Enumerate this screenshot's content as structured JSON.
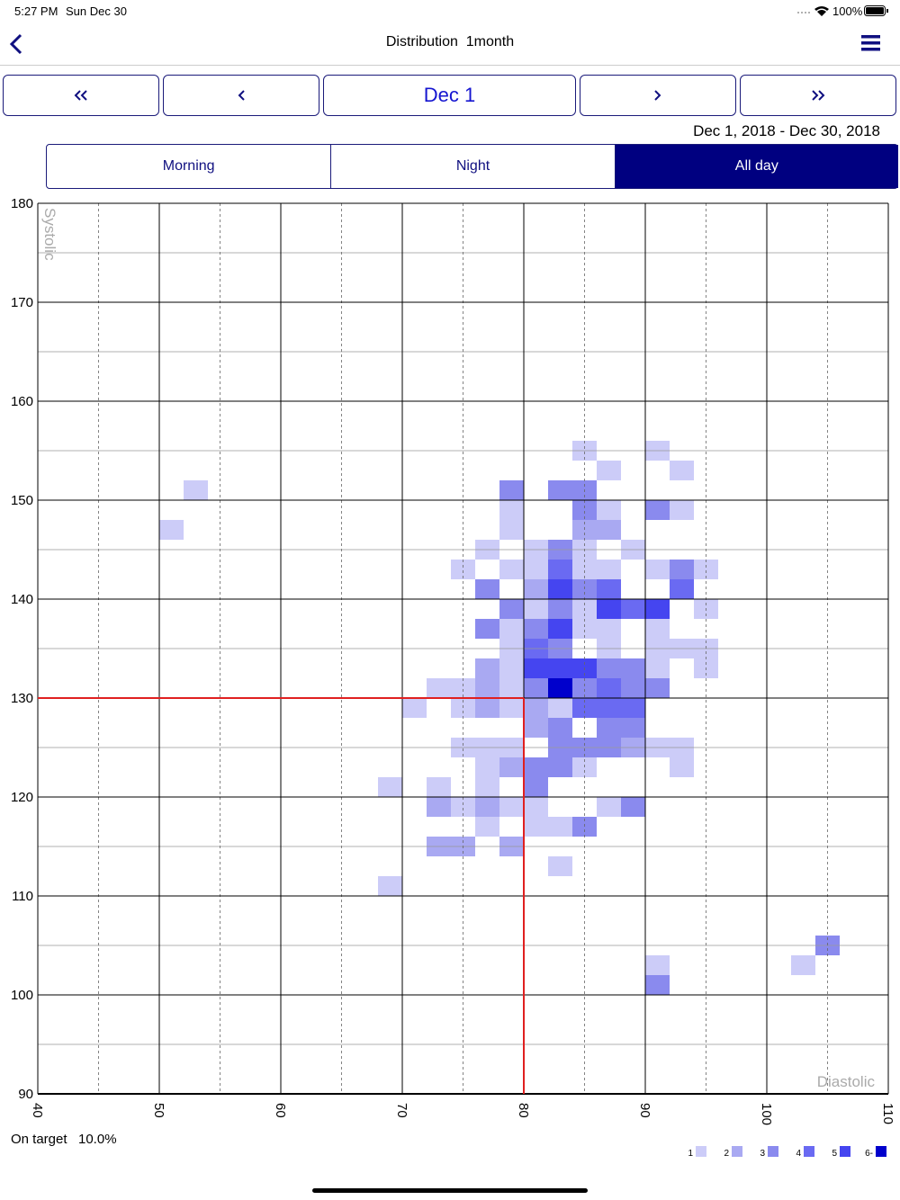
{
  "status_bar": {
    "time": "5:27 PM",
    "date": "Sun Dec 30",
    "battery": "100%"
  },
  "nav": {
    "title": "Distribution  1month"
  },
  "pager": {
    "current": "Dec 1"
  },
  "date_range": "Dec 1, 2018 - Dec 30, 2018",
  "segments": {
    "items": [
      "Morning",
      "Night",
      "All day"
    ],
    "selected": 2
  },
  "chart_data": {
    "type": "heatmap",
    "x_label": "Diastolic",
    "y_label": "Systolic",
    "xlim": [
      40,
      110
    ],
    "ylim": [
      90,
      180
    ],
    "xticks": [
      40,
      50,
      60,
      70,
      80,
      90,
      100,
      110
    ],
    "yticks": [
      90,
      100,
      110,
      120,
      130,
      140,
      150,
      160,
      170,
      180
    ],
    "x_minor": [
      45,
      55,
      65,
      75,
      85,
      95,
      105
    ],
    "y_minor": [
      95,
      105,
      115,
      125,
      135,
      145,
      155,
      165,
      175
    ],
    "cell_size": [
      2,
      2
    ],
    "target": {
      "x": 80,
      "y": 130,
      "color": "#e02020"
    },
    "cells": {
      "x": [
        84,
        90,
        86,
        92,
        52,
        78,
        82,
        84,
        78,
        84,
        86,
        90,
        92,
        50,
        78,
        84,
        86,
        76,
        80,
        82,
        84,
        88,
        74,
        78,
        80,
        82,
        84,
        86,
        90,
        92,
        94,
        76,
        80,
        82,
        84,
        86,
        92,
        78,
        80,
        82,
        84,
        86,
        88,
        90,
        94,
        76,
        78,
        80,
        82,
        84,
        86,
        90,
        78,
        80,
        82,
        86,
        90,
        92,
        94,
        76,
        78,
        80,
        82,
        84,
        86,
        88,
        90,
        94,
        72,
        74,
        76,
        78,
        80,
        82,
        84,
        86,
        88,
        90,
        70,
        74,
        76,
        78,
        80,
        82,
        84,
        86,
        88,
        80,
        82,
        86,
        88,
        74,
        76,
        78,
        82,
        84,
        86,
        88,
        90,
        92,
        76,
        78,
        80,
        82,
        84,
        92,
        68,
        72,
        76,
        80,
        72,
        74,
        76,
        78,
        80,
        86,
        88,
        76,
        80,
        82,
        84,
        72,
        74,
        78,
        82,
        68,
        104,
        90,
        102,
        90
      ],
      "y": [
        154,
        154,
        152,
        152,
        150,
        150,
        150,
        150,
        148,
        148,
        148,
        148,
        148,
        146,
        146,
        146,
        146,
        144,
        144,
        144,
        144,
        144,
        142,
        142,
        142,
        142,
        142,
        142,
        142,
        142,
        142,
        140,
        140,
        140,
        140,
        140,
        140,
        138,
        138,
        138,
        138,
        138,
        138,
        138,
        138,
        136,
        136,
        136,
        136,
        136,
        136,
        136,
        134,
        134,
        134,
        134,
        134,
        134,
        134,
        132,
        132,
        132,
        132,
        132,
        132,
        132,
        132,
        132,
        130,
        130,
        130,
        130,
        130,
        130,
        130,
        130,
        130,
        130,
        128,
        128,
        128,
        128,
        128,
        128,
        128,
        128,
        128,
        126,
        126,
        126,
        126,
        124,
        124,
        124,
        124,
        124,
        124,
        124,
        124,
        124,
        122,
        122,
        122,
        122,
        122,
        122,
        120,
        120,
        120,
        120,
        118,
        118,
        118,
        118,
        118,
        118,
        118,
        116,
        116,
        116,
        116,
        114,
        114,
        114,
        112,
        110,
        104,
        102,
        102,
        100
      ],
      "values": [
        1,
        1,
        1,
        1,
        1,
        3,
        3,
        3,
        1,
        3,
        1,
        3,
        1,
        1,
        1,
        2,
        2,
        1,
        1,
        3,
        1,
        1,
        1,
        1,
        1,
        4,
        1,
        1,
        1,
        3,
        1,
        3,
        2,
        5,
        3,
        4,
        4,
        3,
        1,
        3,
        1,
        5,
        4,
        5,
        1,
        3,
        1,
        3,
        5,
        1,
        1,
        1,
        1,
        4,
        3,
        1,
        1,
        1,
        1,
        2,
        1,
        5,
        5,
        5,
        3,
        3,
        1,
        1,
        1,
        1,
        2,
        1,
        3,
        6,
        3,
        4,
        3,
        3,
        1,
        1,
        2,
        1,
        2,
        1,
        4,
        4,
        4,
        2,
        3,
        3,
        3,
        1,
        1,
        1,
        3,
        3,
        3,
        2,
        1,
        1,
        1,
        2,
        3,
        3,
        1,
        1,
        1,
        1,
        1,
        3,
        2,
        1,
        2,
        1,
        1,
        1,
        3,
        1,
        1,
        1,
        3,
        2,
        2,
        2,
        1,
        1,
        3,
        1,
        1,
        3
      ]
    },
    "legend": {
      "labels": [
        "1",
        "2",
        "3",
        "4",
        "5",
        "6-"
      ],
      "colors": [
        "#ccccf8",
        "#a9a9f2",
        "#8a8aee",
        "#6a6af2",
        "#4545f0",
        "#0000cc"
      ]
    },
    "on_target": {
      "label": "On target",
      "value": "10.0%"
    }
  }
}
